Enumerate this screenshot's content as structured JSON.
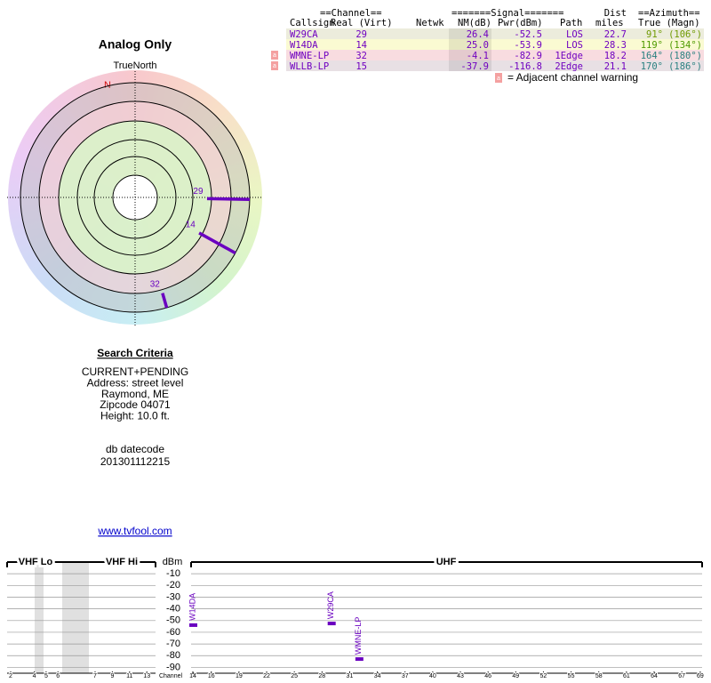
{
  "title": "Analog Only",
  "compass_label": "TrueNorth",
  "north_label": "N",
  "table": {
    "header_groups": [
      "==Channel==",
      "=======Signal=======",
      "Dist",
      "==Azimuth=="
    ],
    "header_columns": [
      "Callsign",
      "Real (Virt)",
      "Netwk",
      "NM(dB)",
      "Pwr(dBm)",
      "Path",
      "miles",
      "True (Magn)"
    ],
    "rows": [
      {
        "callsign": "W29CA",
        "real": 29,
        "nm": 26.4,
        "pwr": -52.5,
        "path": "LOS",
        "dist": 22.7,
        "az_true": {
          "value": 91,
          "label": "91°"
        },
        "az_magn": "(106°)",
        "az_color": "#6f9a00",
        "warning": false
      },
      {
        "callsign": "W14DA",
        "real": 14,
        "nm": {
          "value": 25,
          "label": "25.0"
        },
        "pwr": -53.9,
        "path": "LOS",
        "dist": 28.3,
        "az_true": {
          "value": 119,
          "label": "119°"
        },
        "az_magn": "(134°)",
        "az_color": "#4f9a00",
        "warning": false
      },
      {
        "callsign": "WMNE-LP",
        "real": 32,
        "nm": -4.1,
        "pwr": -82.9,
        "path": "1Edge",
        "dist": 18.2,
        "az_true": {
          "value": 164,
          "label": "164°"
        },
        "az_magn": "(180°)",
        "az_color": "#2a8080",
        "warning": true
      },
      {
        "callsign": "WLLB-LP",
        "real": 15,
        "nm": -37.9,
        "pwr": -116.8,
        "path": "2Edge",
        "dist": 21.1,
        "az_true": {
          "value": 170,
          "label": "170°"
        },
        "az_magn": "(186°)",
        "az_color": "#2a8080",
        "warning": true
      }
    ]
  },
  "warning_legend": {
    "icon": "a",
    "text": "= Adjacent channel warning"
  },
  "search_criteria": {
    "heading": "Search Criteria",
    "lines": [
      "CURRENT+PENDING",
      "Address: street level",
      "Raymond, ME",
      "Zipcode 04071",
      "Height: 10.0 ft."
    ],
    "datecode_label": "db datecode",
    "datecode": "201301112215"
  },
  "link": "www.tvfool.com",
  "spectrum": {
    "type": "bar",
    "vhf_lo": "VHF Lo",
    "vhf_hi": "VHF Hi",
    "uhf": "UHF",
    "y_label": "dBm",
    "x_label": "Channel",
    "color": "#6a00c0",
    "ylim": [
      -95,
      0
    ],
    "yticks": [
      -10,
      -20,
      -30,
      -40,
      -50,
      -60,
      -70,
      -80,
      -90
    ],
    "xticks": [
      2,
      4,
      5,
      6,
      7,
      9,
      11,
      13,
      14,
      16,
      19,
      22,
      25,
      28,
      31,
      34,
      37,
      40,
      43,
      46,
      49,
      52,
      55,
      58,
      61,
      64,
      67,
      69
    ],
    "grid": true
  }
}
